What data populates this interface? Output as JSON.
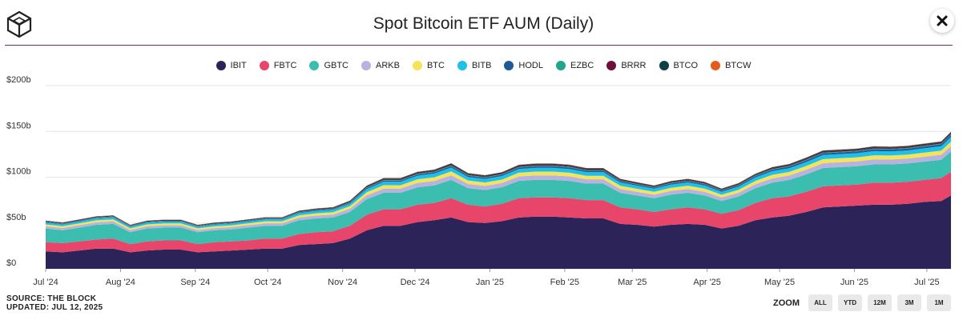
{
  "header": {
    "title": "Spot Bitcoin ETF AUM (Daily)",
    "logo_icon": "cube-logo-icon",
    "close_icon": "close-icon"
  },
  "legend": [
    {
      "label": "IBIT",
      "color": "#2c2359"
    },
    {
      "label": "FBTC",
      "color": "#e8456b"
    },
    {
      "label": "GBTC",
      "color": "#3bbdb0"
    },
    {
      "label": "ARKB",
      "color": "#b7b2de"
    },
    {
      "label": "BTC",
      "color": "#f5e35a"
    },
    {
      "label": "BITB",
      "color": "#1ec0e8"
    },
    {
      "label": "HODL",
      "color": "#1d5a97"
    },
    {
      "label": "EZBC",
      "color": "#23a58c"
    },
    {
      "label": "BRRR",
      "color": "#6e0f3e"
    },
    {
      "label": "BTCO",
      "color": "#0f4044"
    },
    {
      "label": "BTCW",
      "color": "#e85a1c"
    }
  ],
  "footer": {
    "source_line1": "SOURCE: THE BLOCK",
    "source_line2": "UPDATED: JUL 12, 2025"
  },
  "zoom": {
    "label": "ZOOM",
    "buttons": [
      "ALL",
      "YTD",
      "12M",
      "3M",
      "1M"
    ]
  },
  "chart_data": {
    "type": "area",
    "stacked": true,
    "title": "Spot Bitcoin ETF AUM (Daily)",
    "xlabel": "",
    "ylabel": "",
    "ylim": [
      0,
      200
    ],
    "y_unit": "billions USD",
    "yticks": [
      "$0",
      "$50b",
      "$100b",
      "$150b",
      "$200b"
    ],
    "yticks_values": [
      0,
      50,
      100,
      150,
      200
    ],
    "xticks": [
      "Jul '24",
      "Aug '24",
      "Sep '24",
      "Oct '24",
      "Nov '24",
      "Dec '24",
      "Jan '25",
      "Feb '25",
      "Mar '25",
      "Apr '25",
      "May '25",
      "Jun '25",
      "Jul '25"
    ],
    "grid": true,
    "legend_position": "top",
    "x": [
      "2024-07-01",
      "2024-07-08",
      "2024-07-15",
      "2024-07-22",
      "2024-07-29",
      "2024-08-05",
      "2024-08-12",
      "2024-08-19",
      "2024-08-26",
      "2024-09-02",
      "2024-09-09",
      "2024-09-16",
      "2024-09-23",
      "2024-09-30",
      "2024-10-07",
      "2024-10-14",
      "2024-10-21",
      "2024-10-28",
      "2024-11-04",
      "2024-11-11",
      "2024-11-18",
      "2024-11-25",
      "2024-12-02",
      "2024-12-09",
      "2024-12-16",
      "2024-12-23",
      "2024-12-30",
      "2025-01-06",
      "2025-01-13",
      "2025-01-20",
      "2025-01-27",
      "2025-02-03",
      "2025-02-10",
      "2025-02-17",
      "2025-02-24",
      "2025-03-03",
      "2025-03-10",
      "2025-03-17",
      "2025-03-24",
      "2025-03-31",
      "2025-04-07",
      "2025-04-14",
      "2025-04-21",
      "2025-04-28",
      "2025-05-05",
      "2025-05-12",
      "2025-05-19",
      "2025-05-26",
      "2025-06-02",
      "2025-06-09",
      "2025-06-16",
      "2025-06-23",
      "2025-06-30",
      "2025-07-07",
      "2025-07-11"
    ],
    "series": [
      {
        "name": "IBIT",
        "values": [
          19,
          18,
          20,
          22,
          22,
          18,
          20,
          21,
          21,
          18,
          19,
          20,
          21,
          22,
          22,
          26,
          27,
          28,
          33,
          42,
          47,
          47,
          51,
          53,
          56,
          51,
          50,
          52,
          56,
          57,
          57,
          56,
          55,
          55,
          49,
          48,
          46,
          48,
          49,
          48,
          44,
          47,
          53,
          56,
          58,
          62,
          67,
          68,
          69,
          70,
          70,
          71,
          73,
          74,
          80
        ]
      },
      {
        "name": "FBTC",
        "values": [
          10,
          10,
          10,
          10,
          11,
          9,
          10,
          10,
          10,
          9,
          10,
          10,
          10,
          11,
          11,
          12,
          13,
          13,
          14,
          17,
          18,
          18,
          19,
          19,
          21,
          19,
          18,
          19,
          21,
          21,
          21,
          21,
          20,
          20,
          18,
          17,
          16,
          17,
          18,
          17,
          16,
          17,
          19,
          21,
          21,
          22,
          23,
          23,
          23,
          24,
          24,
          24,
          24,
          25,
          26
        ]
      },
      {
        "name": "GBTC",
        "values": [
          15,
          14,
          15,
          16,
          16,
          13,
          14,
          14,
          14,
          13,
          13,
          13,
          14,
          14,
          14,
          15,
          15,
          15,
          15,
          17,
          18,
          18,
          19,
          19,
          20,
          18,
          18,
          18,
          19,
          19,
          19,
          19,
          18,
          18,
          16,
          15,
          15,
          16,
          16,
          15,
          14,
          15,
          16,
          17,
          18,
          19,
          20,
          20,
          20,
          20,
          20,
          20,
          20,
          20,
          22
        ]
      },
      {
        "name": "ARKB",
        "values": [
          2.5,
          2.5,
          2.6,
          2.7,
          2.7,
          2.3,
          2.5,
          2.5,
          2.5,
          2.3,
          2.4,
          2.5,
          2.6,
          2.7,
          2.7,
          3,
          3.1,
          3.2,
          3.5,
          4.2,
          4.6,
          4.6,
          4.8,
          4.9,
          5.1,
          4.6,
          4.5,
          4.6,
          4.9,
          5,
          5,
          4.9,
          4.7,
          4.7,
          4.2,
          4,
          3.9,
          4.1,
          4.2,
          4.1,
          3.8,
          4,
          4.4,
          4.7,
          4.8,
          5,
          5.3,
          5.3,
          5.3,
          5.4,
          5.3,
          5.3,
          5.4,
          5.5,
          5.9
        ]
      },
      {
        "name": "BTC",
        "values": [
          2,
          2,
          2.1,
          2.2,
          2.2,
          1.9,
          2,
          2,
          2,
          1.9,
          2,
          2,
          2.1,
          2.2,
          2.2,
          2.4,
          2.5,
          2.6,
          2.8,
          3.4,
          3.7,
          3.7,
          3.9,
          4,
          4.2,
          3.8,
          3.7,
          3.8,
          4,
          4.1,
          4.1,
          4,
          3.9,
          3.9,
          3.5,
          3.3,
          3.2,
          3.4,
          3.5,
          3.4,
          3.1,
          3.3,
          3.6,
          3.9,
          4,
          4.2,
          4.4,
          4.4,
          4.4,
          4.5,
          4.4,
          4.4,
          4.5,
          4.6,
          4.9
        ]
      },
      {
        "name": "BITB",
        "values": [
          2,
          2,
          2.1,
          2.2,
          2.2,
          1.9,
          2,
          2,
          2,
          1.9,
          2,
          2,
          2.1,
          2.2,
          2.2,
          2.5,
          2.6,
          2.7,
          2.9,
          3.5,
          3.8,
          3.8,
          4,
          4.1,
          4.3,
          3.9,
          3.8,
          3.9,
          4.1,
          4.2,
          4.2,
          4.1,
          4,
          4,
          3.6,
          3.4,
          3.3,
          3.5,
          3.6,
          3.5,
          3.2,
          3.4,
          3.7,
          4,
          4.1,
          4.3,
          4.5,
          4.5,
          4.5,
          4.6,
          4.5,
          4.5,
          4.6,
          4.7,
          5
        ]
      },
      {
        "name": "HODL",
        "values": [
          0.5,
          0.5,
          0.5,
          0.6,
          0.6,
          0.5,
          0.5,
          0.5,
          0.5,
          0.5,
          0.5,
          0.5,
          0.6,
          0.6,
          0.6,
          0.7,
          0.7,
          0.8,
          0.9,
          1.1,
          1.2,
          1.2,
          1.3,
          1.4,
          1.5,
          1.4,
          1.4,
          1.4,
          1.5,
          1.6,
          1.6,
          1.6,
          1.5,
          1.5,
          1.4,
          1.3,
          1.2,
          1.3,
          1.4,
          1.3,
          1.2,
          1.3,
          1.5,
          1.6,
          1.7,
          1.8,
          1.9,
          1.9,
          1.9,
          2,
          2,
          2,
          2,
          2.1,
          2.3
        ]
      },
      {
        "name": "EZBC",
        "values": [
          0.4,
          0.4,
          0.4,
          0.4,
          0.4,
          0.4,
          0.4,
          0.4,
          0.4,
          0.4,
          0.4,
          0.4,
          0.4,
          0.4,
          0.4,
          0.5,
          0.5,
          0.5,
          0.6,
          0.7,
          0.7,
          0.7,
          0.8,
          0.8,
          0.8,
          0.7,
          0.7,
          0.7,
          0.8,
          0.8,
          0.8,
          0.8,
          0.7,
          0.7,
          0.6,
          0.6,
          0.6,
          0.6,
          0.6,
          0.6,
          0.6,
          0.6,
          0.7,
          0.7,
          0.7,
          0.8,
          0.8,
          0.8,
          0.8,
          0.8,
          0.8,
          0.8,
          0.8,
          0.8,
          0.9
        ]
      },
      {
        "name": "BRRR",
        "values": [
          0.5,
          0.5,
          0.5,
          0.5,
          0.5,
          0.4,
          0.5,
          0.5,
          0.5,
          0.4,
          0.5,
          0.5,
          0.5,
          0.5,
          0.5,
          0.6,
          0.6,
          0.6,
          0.7,
          0.8,
          0.9,
          0.9,
          0.9,
          0.9,
          1,
          0.9,
          0.9,
          0.9,
          0.9,
          1,
          1,
          0.9,
          0.9,
          0.9,
          0.8,
          0.8,
          0.7,
          0.8,
          0.8,
          0.8,
          0.7,
          0.8,
          0.8,
          0.9,
          0.9,
          1,
          1,
          1,
          1,
          1,
          1,
          1,
          1,
          1,
          1.1
        ]
      },
      {
        "name": "BTCO",
        "values": [
          0.6,
          0.6,
          0.6,
          0.6,
          0.6,
          0.5,
          0.6,
          0.6,
          0.6,
          0.5,
          0.6,
          0.6,
          0.6,
          0.6,
          0.6,
          0.7,
          0.7,
          0.7,
          0.8,
          0.9,
          1,
          1,
          1,
          1,
          1.1,
          1,
          1,
          1,
          1.1,
          1.1,
          1.1,
          1.1,
          1,
          1,
          0.9,
          0.9,
          0.8,
          0.9,
          0.9,
          0.9,
          0.8,
          0.9,
          0.9,
          1,
          1,
          1.1,
          1.1,
          1.1,
          1.1,
          1.2,
          1.1,
          1.1,
          1.2,
          1.2,
          1.3
        ]
      },
      {
        "name": "BTCW",
        "values": [
          0.2,
          0.2,
          0.2,
          0.2,
          0.2,
          0.2,
          0.2,
          0.2,
          0.2,
          0.2,
          0.2,
          0.2,
          0.2,
          0.2,
          0.2,
          0.2,
          0.2,
          0.2,
          0.3,
          0.3,
          0.3,
          0.3,
          0.3,
          0.3,
          0.3,
          0.3,
          0.3,
          0.3,
          0.3,
          0.3,
          0.3,
          0.3,
          0.3,
          0.3,
          0.3,
          0.3,
          0.3,
          0.3,
          0.3,
          0.3,
          0.3,
          0.3,
          0.3,
          0.3,
          0.3,
          0.3,
          0.3,
          0.3,
          0.3,
          0.3,
          0.3,
          0.3,
          0.3,
          0.3,
          0.3
        ]
      }
    ]
  }
}
